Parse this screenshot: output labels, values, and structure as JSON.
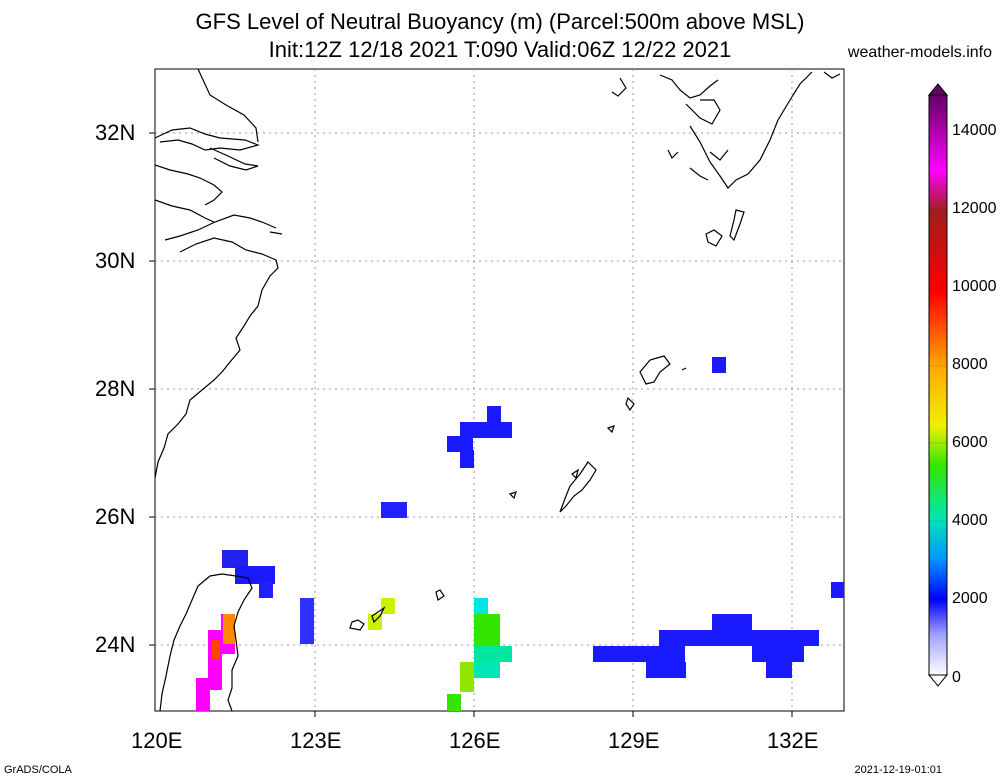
{
  "title": {
    "line1": "GFS Level of Neutral Buoyancy (m) (Parcel:500m above MSL)",
    "line2": "Init:12Z 12/18 2021 T:090 Valid:06Z 12/22 2021"
  },
  "site": "weather-models.info",
  "footer": {
    "left": "GrADS/COLA",
    "right": "2021-12-19-01:01"
  },
  "axes": {
    "lat_labels": [
      "32N",
      "30N",
      "28N",
      "26N",
      "24N"
    ],
    "lon_labels": [
      "120E",
      "123E",
      "126E",
      "129E",
      "132E"
    ]
  },
  "colorbar": {
    "labels": [
      "0",
      "2000",
      "4000",
      "6000",
      "8000",
      "10000",
      "12000",
      "14000"
    ],
    "colors": [
      "#f0f0ff",
      "#dcdcff",
      "#c8c8ff",
      "#a0a0ff",
      "#7878ff",
      "#5050ff",
      "#2828ff",
      "#0000ff",
      "#0032ff",
      "#0064ff",
      "#0096ff",
      "#00c8ff",
      "#00e6e6",
      "#00e6b4",
      "#00e678",
      "#00e63c",
      "#32e600",
      "#78e600",
      "#b4e600",
      "#f0f000",
      "#ffd200",
      "#ffaa00",
      "#ff8200",
      "#ff5a00",
      "#ff3200",
      "#ff0000",
      "#e60000",
      "#c80000",
      "#b41414",
      "#a01e1e",
      "#8c2828",
      "#ff00ff",
      "#f000f0",
      "#dc00dc",
      "#c800c8",
      "#b400b4",
      "#a000a0",
      "#8c008c",
      "#780078",
      "#640064"
    ]
  },
  "map_features": {
    "coastline": "black",
    "grid": "dotted",
    "fill_cells": "blue/green/red/magenta"
  }
}
